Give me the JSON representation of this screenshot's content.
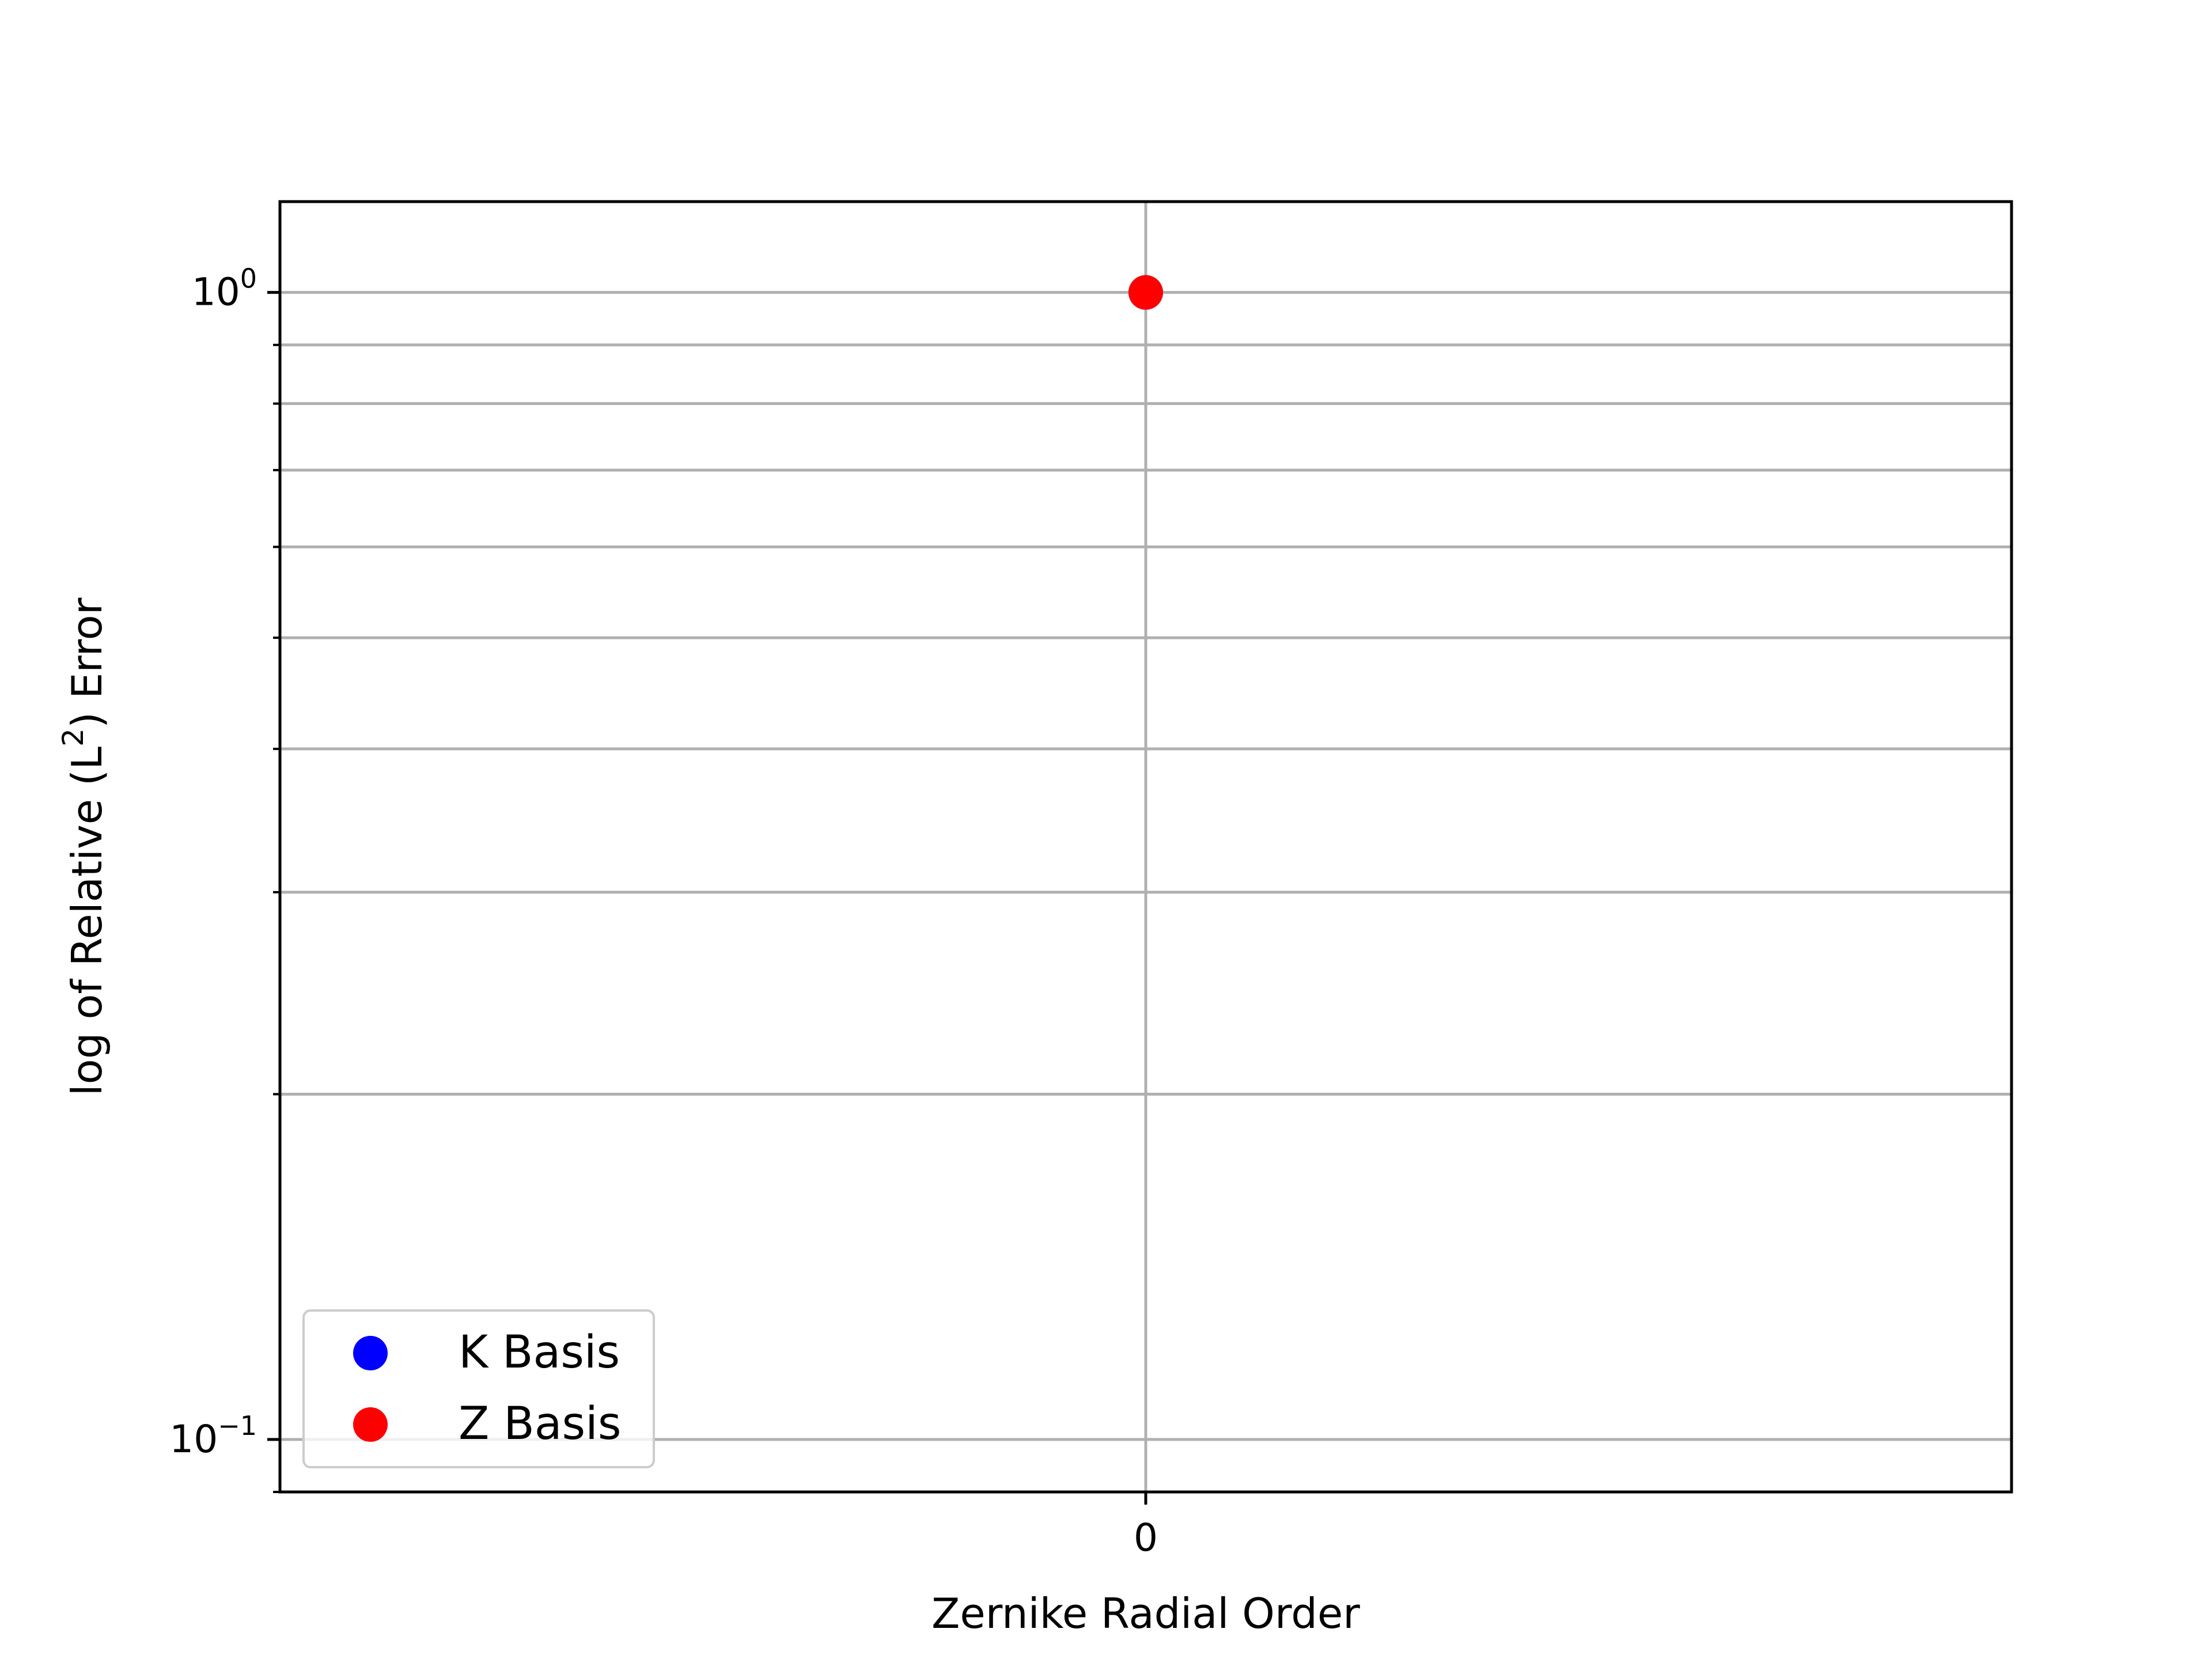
{
  "chart_data": {
    "type": "scatter",
    "title": "",
    "xlabel": "Zernike Radial Order",
    "ylabel": {
      "prefix": "log of Relative (L",
      "sup": "2",
      "suffix": ") Error"
    },
    "x_ticks": [
      {
        "value": 0,
        "label": "0"
      }
    ],
    "y_scale": "log",
    "y_ticks": [
      {
        "value": 1,
        "base": "10",
        "exp": "0"
      },
      {
        "value": 0.1,
        "base": "10",
        "exp": "−1"
      }
    ],
    "xlim": [
      -1,
      1
    ],
    "ylim": [
      0.09,
      1.2
    ],
    "grid": true,
    "legend": {
      "position": "lower-left",
      "entries": [
        {
          "name": "K Basis",
          "color": "#0000ff"
        },
        {
          "name": "Z Basis",
          "color": "#ff0000"
        }
      ]
    },
    "series": [
      {
        "name": "K Basis",
        "color": "#0000ff",
        "points": [
          {
            "x": 0,
            "y": 1
          }
        ]
      },
      {
        "name": "Z Basis",
        "color": "#ff0000",
        "points": [
          {
            "x": 0,
            "y": 1
          }
        ]
      }
    ]
  }
}
